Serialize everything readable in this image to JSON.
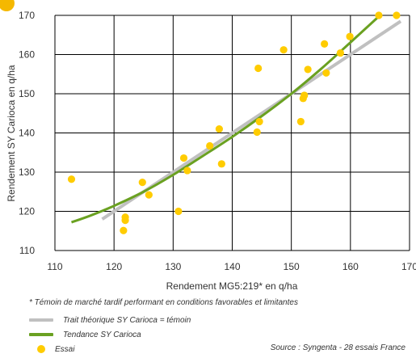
{
  "chart_data": {
    "type": "scatter",
    "xlabel": "Rendement MG5:219* en q/ha",
    "ylabel": "Rendement SY Carioca en q/ha",
    "xlim": [
      110,
      170
    ],
    "ylim": [
      110,
      170
    ],
    "xticks": [
      "110",
      "120",
      "130",
      "140",
      "150",
      "160",
      "170"
    ],
    "yticks": [
      "110",
      "120",
      "130",
      "140",
      "150",
      "160",
      "170"
    ],
    "grid": true,
    "colors": {
      "essai": "#ffcc00",
      "theorique": "#c0c0c0",
      "tendance": "#6aa121"
    },
    "series": [
      {
        "name": "Essai",
        "kind": "points",
        "points": [
          [
            112.8,
            128.2
          ],
          [
            121.6,
            115.1
          ],
          [
            121.9,
            117.7
          ],
          [
            121.9,
            118.5
          ],
          [
            124.8,
            127.4
          ],
          [
            125.9,
            124.2
          ],
          [
            130.9,
            120.0
          ],
          [
            131.8,
            133.6
          ],
          [
            132.4,
            130.4
          ],
          [
            136.2,
            136.7
          ],
          [
            137.8,
            141.0
          ],
          [
            138.2,
            132.1
          ],
          [
            144.2,
            140.2
          ],
          [
            144.4,
            156.5
          ],
          [
            144.6,
            142.9
          ],
          [
            148.7,
            161.2
          ],
          [
            151.6,
            142.9
          ],
          [
            152.0,
            148.8
          ],
          [
            152.2,
            149.6
          ],
          [
            152.8,
            156.2
          ],
          [
            155.6,
            162.7
          ],
          [
            155.9,
            155.3
          ],
          [
            158.3,
            160.4
          ],
          [
            159.9,
            164.6
          ],
          [
            164.8,
            170.0
          ],
          [
            167.8,
            170.0
          ]
        ]
      },
      {
        "name": "Trait théorique SY Carioca = témoin",
        "kind": "line",
        "points": [
          [
            118.0,
            118.0
          ],
          [
            168.5,
            168.5
          ]
        ]
      },
      {
        "name": "Tendance SY Carioca",
        "kind": "curve",
        "points": [
          [
            112.8,
            117.2
          ],
          [
            116.0,
            118.9
          ],
          [
            120.0,
            121.4
          ],
          [
            125.0,
            125.0
          ],
          [
            130.0,
            129.3
          ],
          [
            135.0,
            134.1
          ],
          [
            140.0,
            139.0
          ],
          [
            145.0,
            144.3
          ],
          [
            150.0,
            150.0
          ],
          [
            155.0,
            156.3
          ],
          [
            160.0,
            163.1
          ],
          [
            165.0,
            170.0
          ]
        ]
      }
    ]
  },
  "footnote": "* Témoin de marché tardif performant en conditions favorables et limitantes",
  "legend": {
    "theorique": "Trait théorique SY Carioca = témoin",
    "tendance": "Tendance SY Carioca",
    "essai": "Essai"
  },
  "source": "Source : Syngenta - 28 essais France"
}
